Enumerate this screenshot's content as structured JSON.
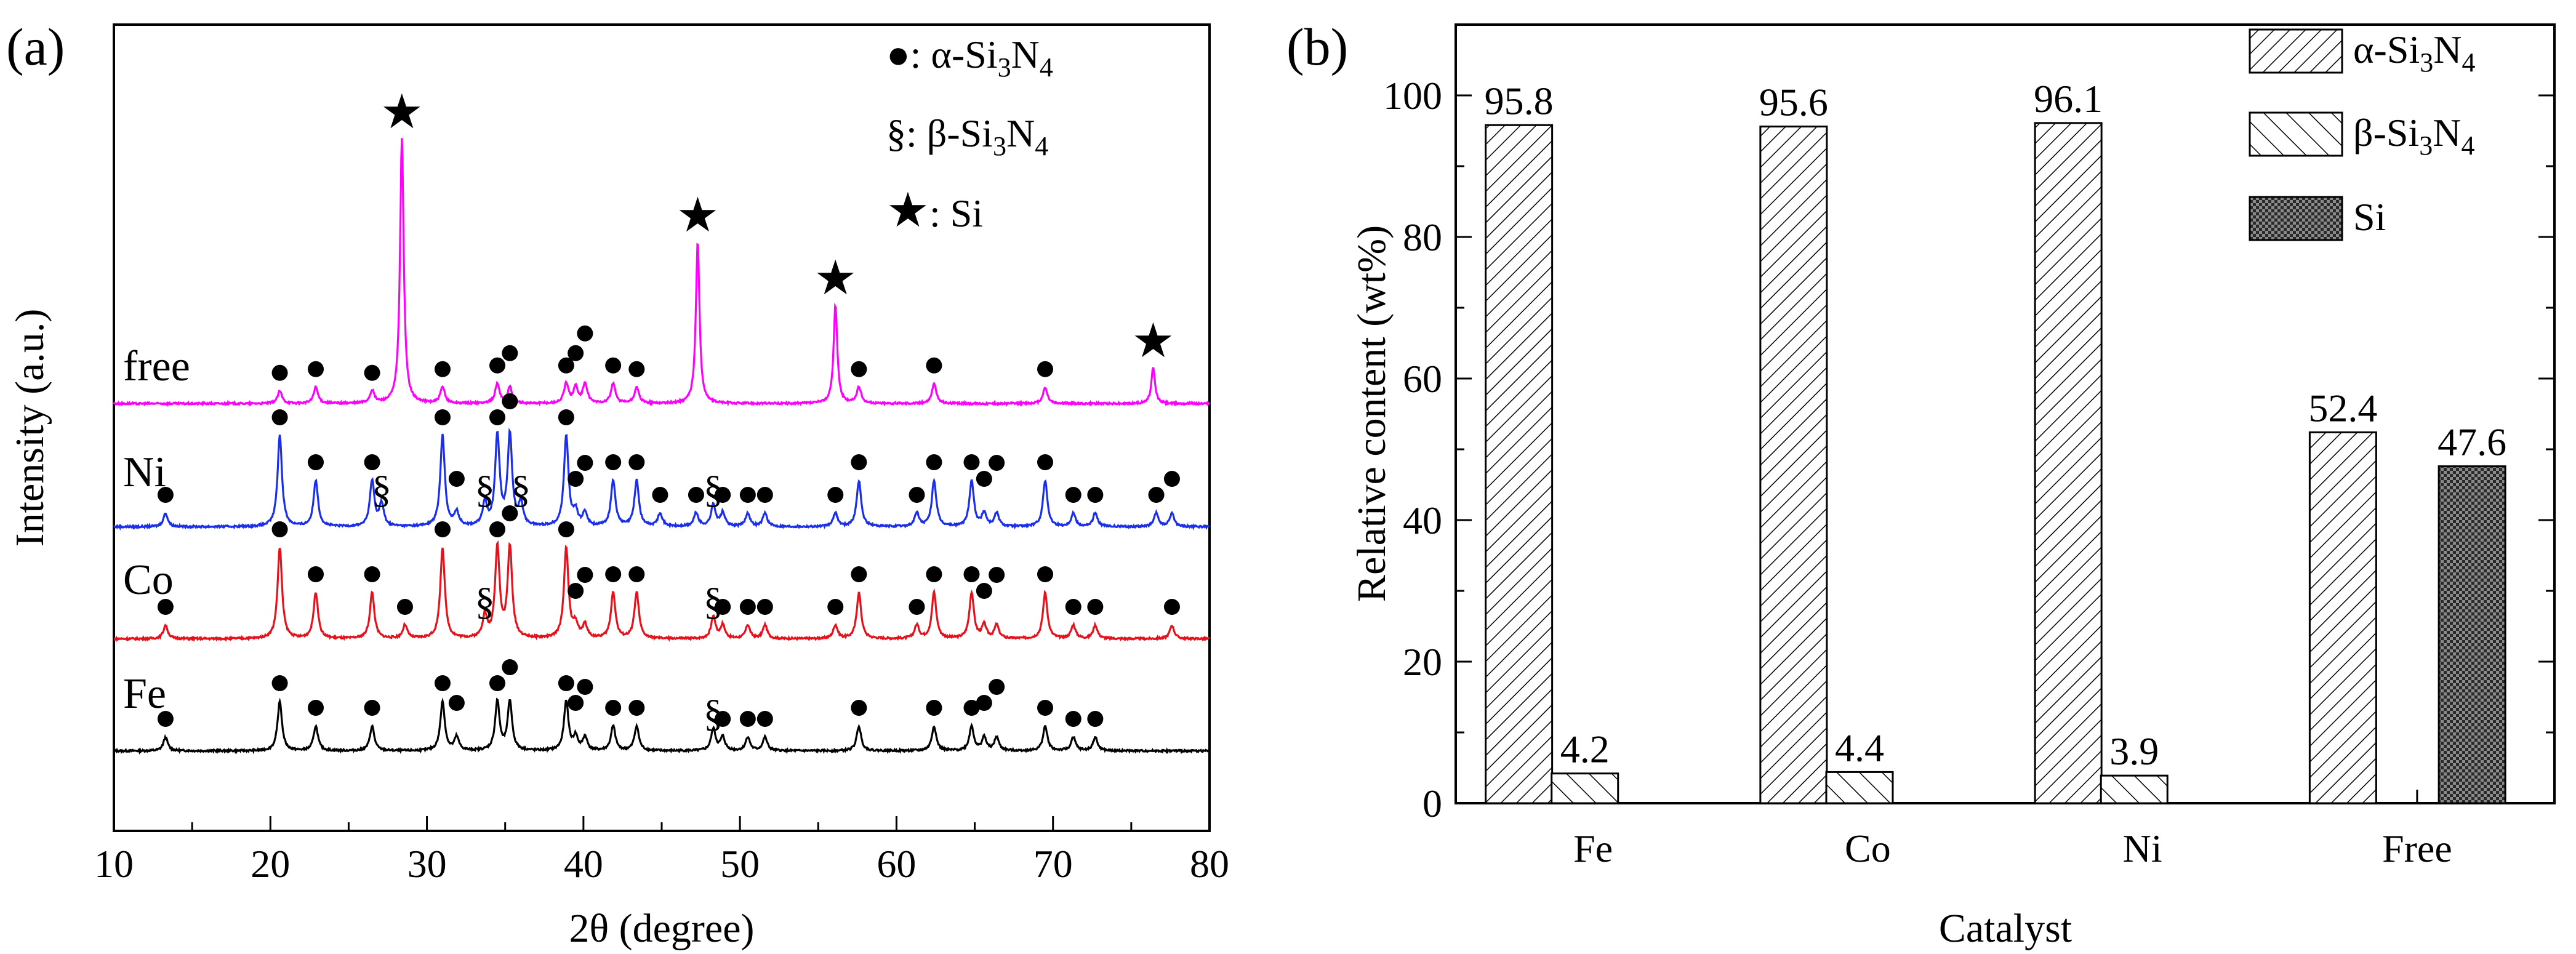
{
  "chart_data": [
    {
      "type": "line",
      "panel": "(a)",
      "xlabel": "2θ (degree)",
      "ylabel": "Intensity (a.u.)",
      "xlim": [
        10,
        80
      ],
      "xticks": [
        10,
        20,
        30,
        40,
        50,
        60,
        70,
        80
      ],
      "legend": [
        {
          "marker": "●",
          "sep": ": ",
          "text": "α-Si",
          "sub1": "3",
          "mid": "N",
          "sub2": "4"
        },
        {
          "marker": "§",
          "sep": ": ",
          "text": "β-Si",
          "sub1": "3",
          "mid": "N",
          "sub2": "4"
        },
        {
          "marker": "★",
          "sep": ": ",
          "text": "Si",
          "sub1": "",
          "mid": "",
          "sub2": ""
        }
      ],
      "series": [
        {
          "name": "Fe",
          "color": "#000000",
          "baseline": 0.0,
          "alpha_peaks": [
            13.3,
            20.6,
            22.9,
            26.5,
            31.0,
            31.9,
            34.5,
            35.3,
            38.9,
            39.5,
            40.1,
            41.9,
            43.4,
            48.9,
            50.5,
            51.6,
            57.6,
            62.4,
            64.8,
            65.6,
            66.4,
            69.5,
            71.3,
            72.7
          ],
          "beta_peaks": [
            48.3
          ],
          "si_peaks": []
        },
        {
          "name": "Co",
          "color": "#e8101a",
          "baseline": 1.0,
          "alpha_peaks": [
            13.3,
            20.6,
            22.9,
            26.5,
            28.6,
            31.0,
            34.5,
            35.3,
            38.9,
            39.5,
            40.1,
            41.9,
            43.4,
            48.9,
            50.5,
            51.6,
            56.1,
            57.6,
            61.3,
            62.4,
            64.8,
            65.6,
            66.4,
            69.5,
            71.3,
            72.7,
            77.6
          ],
          "beta_peaks": [
            33.7,
            48.3
          ],
          "si_peaks": []
        },
        {
          "name": "Ni",
          "color": "#1a2ef0",
          "baseline": 2.0,
          "alpha_peaks": [
            13.3,
            20.6,
            22.9,
            26.5,
            31.0,
            31.9,
            34.5,
            35.3,
            38.9,
            39.5,
            40.1,
            41.9,
            43.4,
            44.9,
            47.2,
            48.9,
            50.5,
            51.6,
            56.1,
            57.6,
            61.3,
            62.4,
            64.8,
            65.6,
            66.4,
            69.5,
            71.3,
            72.7,
            76.6,
            77.6
          ],
          "beta_peaks": [
            27.1,
            33.7,
            36.0,
            48.3
          ],
          "si_peaks": []
        },
        {
          "name": "free",
          "color": "#ff00ff",
          "baseline": 3.1,
          "alpha_peaks": [
            20.6,
            22.9,
            26.5,
            31.0,
            34.5,
            35.3,
            38.9,
            39.5,
            40.1,
            41.9,
            43.4,
            57.6,
            62.4,
            69.5
          ],
          "beta_peaks": [],
          "si_peaks": [
            28.4,
            47.3,
            56.1,
            76.4
          ]
        }
      ]
    },
    {
      "type": "bar",
      "panel": "(b)",
      "xlabel": "Catalyst",
      "ylabel": "Relative content (wt%)",
      "ylim": [
        0,
        110
      ],
      "yticks": [
        0,
        20,
        40,
        60,
        80,
        100
      ],
      "categories": [
        "Fe",
        "Co",
        "Ni",
        "Free"
      ],
      "series": [
        {
          "name": "α-Si3N4",
          "label_main": "α-Si",
          "sub1": "3",
          "mid": "N",
          "sub2": "4",
          "pattern": "hatch-dense",
          "values": [
            95.8,
            95.6,
            96.1,
            52.4
          ],
          "labels": [
            "95.8",
            "95.6",
            "96.1",
            "52.4"
          ]
        },
        {
          "name": "β-Si3N4",
          "label_main": "β-Si",
          "sub1": "3",
          "mid": "N",
          "sub2": "4",
          "pattern": "hatch-wide",
          "values": [
            4.2,
            4.4,
            3.9,
            0
          ],
          "labels": [
            "4.2",
            "4.4",
            "3.9",
            ""
          ]
        },
        {
          "name": "Si",
          "label_main": "Si",
          "sub1": "",
          "mid": "",
          "sub2": "",
          "pattern": "cross",
          "values": [
            0,
            0,
            0,
            47.6
          ],
          "labels": [
            "",
            "",
            "",
            "47.6"
          ]
        }
      ]
    }
  ]
}
